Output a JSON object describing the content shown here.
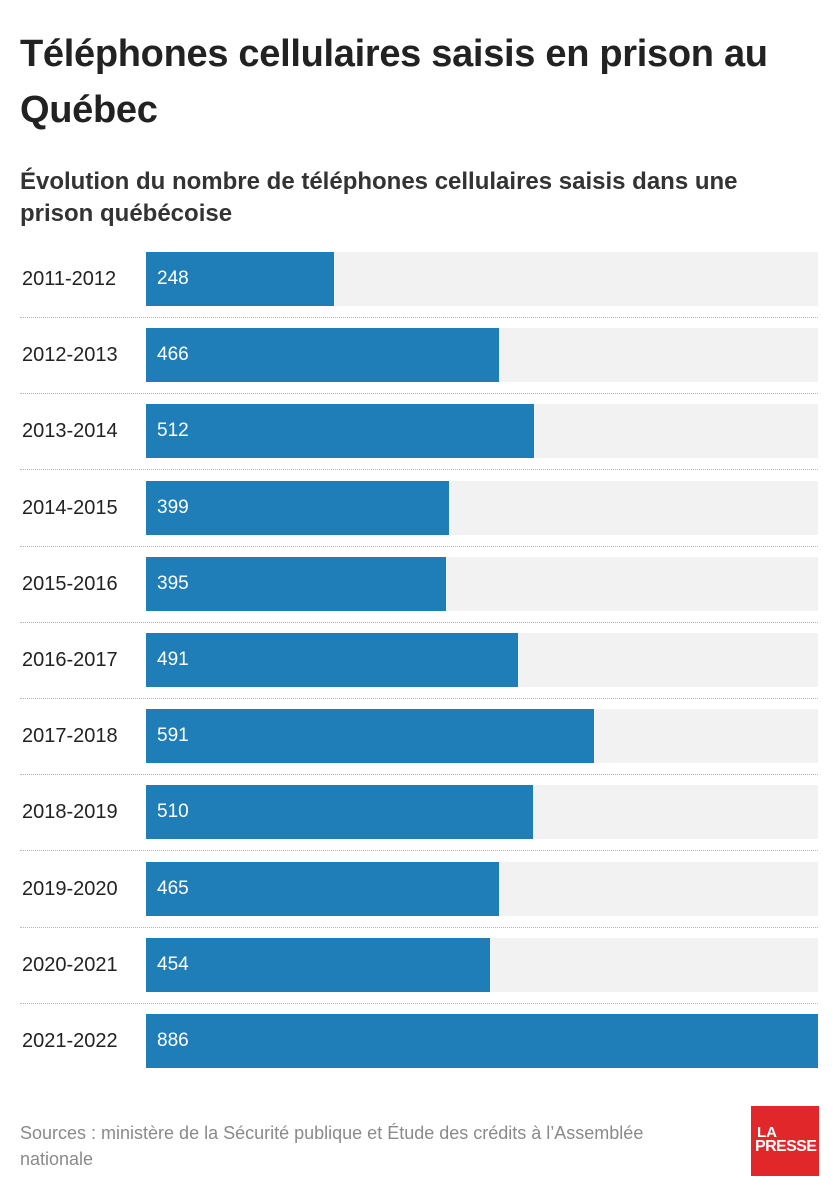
{
  "header": {
    "title": "Téléphones cellulaires saisis en prison au Québec",
    "subtitle": "Évolution du nombre de téléphones cellulaires saisis dans une prison québécoise"
  },
  "chart_data": {
    "type": "bar",
    "orientation": "horizontal",
    "title": "Téléphones cellulaires saisis en prison au Québec",
    "subtitle": "Évolution du nombre de téléphones cellulaires saisis dans une prison québécoise",
    "categories": [
      "2011-2012",
      "2012-2013",
      "2013-2014",
      "2014-2015",
      "2015-2016",
      "2016-2017",
      "2017-2018",
      "2018-2019",
      "2019-2020",
      "2020-2021",
      "2021-2022"
    ],
    "values": [
      248,
      466,
      512,
      399,
      395,
      491,
      591,
      510,
      465,
      454,
      886
    ],
    "value_labels": [
      "248",
      "466",
      "512",
      "399",
      "395",
      "491",
      "591",
      "510",
      "465",
      "454",
      "886"
    ],
    "xlim": [
      0,
      886
    ],
    "bar_color": "#1f7db8",
    "track_color": "#f2f2f2",
    "grid": false,
    "legend": "none"
  },
  "footer": {
    "source": "Sources : ministère de la Sécurité publique et Étude des crédits à l’Assemblée nationale"
  },
  "logo": {
    "line1": "LA",
    "line2": "PRESSE",
    "color": "#e2272a"
  }
}
